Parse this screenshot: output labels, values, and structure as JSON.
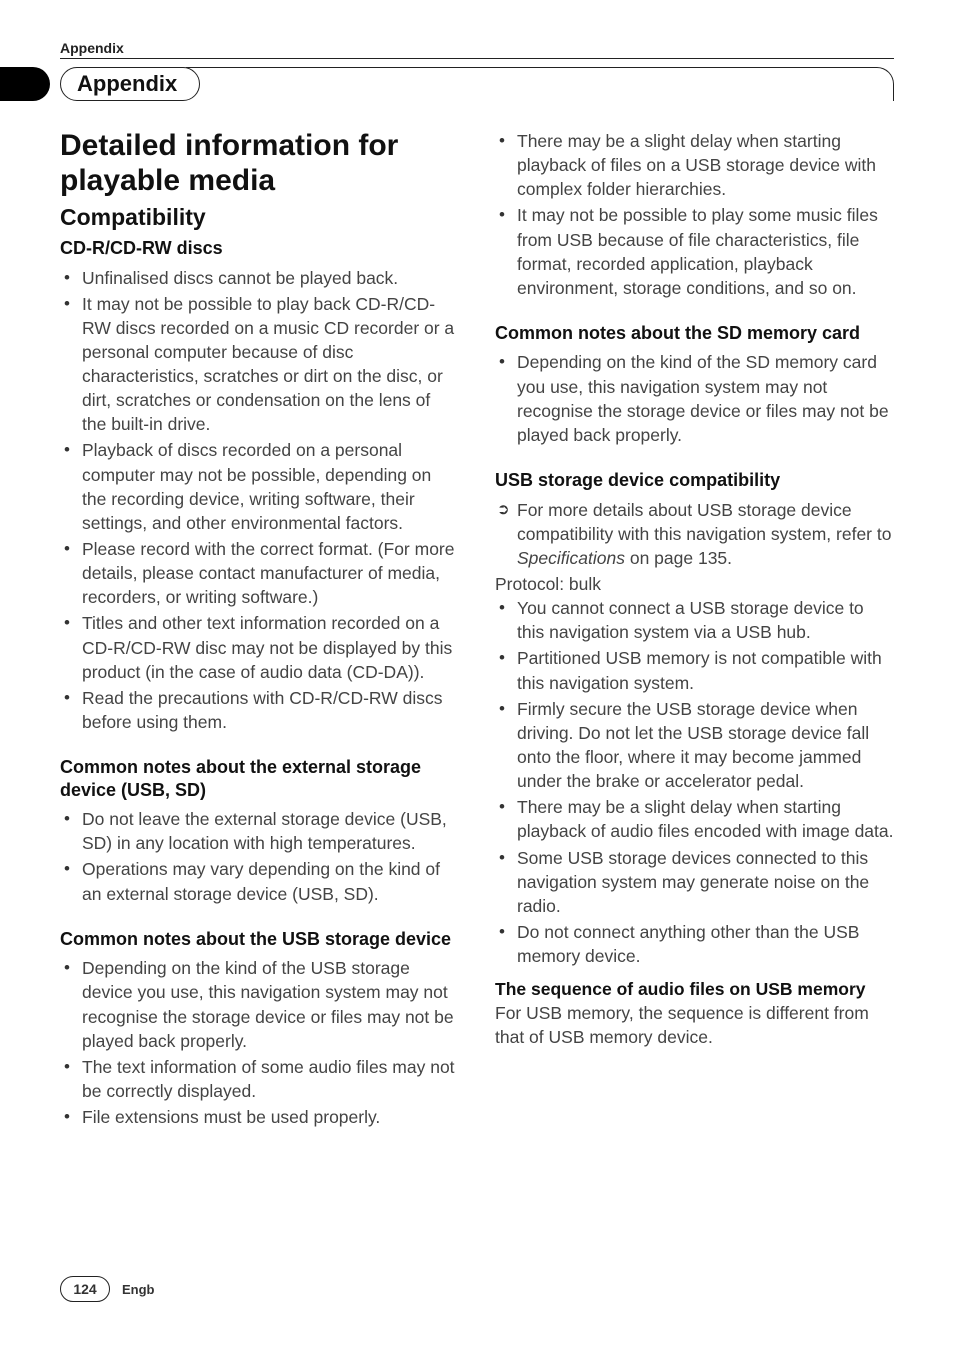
{
  "header": {
    "small_title": "Appendix",
    "section_pill": "Appendix"
  },
  "left": {
    "h1": "Detailed information for playable media",
    "h2": "Compatibility",
    "sec1": {
      "title": "CD-R/CD-RW discs",
      "items": [
        "Unfinalised discs cannot be played back.",
        "It may not be possible to play back CD-R/CD-RW discs recorded on a music CD recorder or a personal computer because of disc characteristics, scratches or dirt on the disc, or dirt, scratches or condensation on the lens of the built-in drive.",
        "Playback of discs recorded on a personal computer may not be possible, depending on the recording device, writing software, their settings, and other environmental factors.",
        "Please record with the correct format. (For more details, please contact manufacturer of media, recorders, or writing software.)",
        "Titles and other text information recorded on a CD-R/CD-RW disc may not be displayed by this product (in the case of audio data (CD-DA)).",
        "Read the precautions with CD-R/CD-RW discs before using them."
      ]
    },
    "sec2": {
      "title": "Common notes about the external storage device (USB, SD)",
      "items": [
        "Do not leave the external storage device (USB, SD) in any location with high temperatures.",
        "Operations may vary depending on the kind of an external storage device (USB, SD)."
      ]
    },
    "sec3": {
      "title": "Common notes about the USB storage device",
      "items": [
        "Depending on the kind of the USB storage device you use, this navigation system may not recognise the storage device or files may not be played back properly.",
        "The text information of some audio files may not be correctly displayed.",
        "File extensions must be used properly."
      ]
    }
  },
  "right": {
    "cont_items": [
      "There may be a slight delay when starting playback of files on a USB storage device with complex folder hierarchies.",
      "It may not be possible to play some music files from USB because of file characteristics, file format, recorded application, playback environment, storage conditions, and so on."
    ],
    "sec_sd": {
      "title": "Common notes about the SD memory card",
      "items": [
        "Depending on the kind of the SD memory card you use, this navigation system may not recognise the storage device or files may not be played back properly."
      ]
    },
    "sec_usb": {
      "title": "USB storage device compatibility",
      "arrow_prefix": "For more details about USB storage device compatibility with this navigation system, refer to ",
      "arrow_italic": "Specifications",
      "arrow_suffix": " on page 135.",
      "protocol": "Protocol: bulk",
      "items": [
        "You cannot connect a USB storage device to this navigation system via a USB hub.",
        "Partitioned USB memory is not compatible with this navigation system.",
        "Firmly secure the USB storage device when driving. Do not let the USB storage device fall onto the floor, where it may become jammed under the brake or accelerator pedal.",
        "There may be a slight delay when starting playback of audio files encoded with image data.",
        "Some USB storage devices connected to this navigation system may generate noise on the radio.",
        "Do not connect anything other than the USB memory device."
      ],
      "sub_h4": "The sequence of audio files on USB memory",
      "sub_para": "For USB memory, the sequence is different from that of USB memory device."
    }
  },
  "footer": {
    "page_number": "124",
    "lang": "Engb"
  }
}
